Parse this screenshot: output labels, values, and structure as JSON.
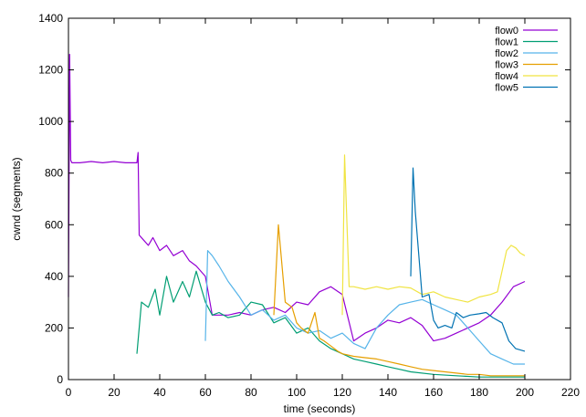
{
  "chart_data": {
    "type": "line",
    "xlabel": "time (seconds)",
    "ylabel": "cwnd (segments)",
    "xlim": [
      0,
      220
    ],
    "ylim": [
      0,
      1400
    ],
    "xticks": [
      0,
      20,
      40,
      60,
      80,
      100,
      120,
      140,
      160,
      180,
      200,
      220
    ],
    "yticks": [
      0,
      200,
      400,
      600,
      800,
      1000,
      1200,
      1400
    ],
    "legend_position": "top-right",
    "grid": false,
    "series": [
      {
        "name": "flow0",
        "color": "#9400d3",
        "x": [
          0,
          0.5,
          1,
          1.5,
          2,
          5,
          10,
          15,
          20,
          25,
          30,
          30.5,
          31,
          33,
          35,
          37,
          40,
          43,
          46,
          50,
          53,
          56,
          60,
          63,
          66,
          70,
          75,
          80,
          85,
          90,
          95,
          100,
          105,
          110,
          115,
          120,
          125,
          130,
          135,
          140,
          145,
          150,
          155,
          160,
          165,
          170,
          175,
          180,
          185,
          190,
          195,
          200
        ],
        "y": [
          320,
          1260,
          850,
          840,
          840,
          840,
          845,
          840,
          845,
          840,
          840,
          880,
          560,
          540,
          520,
          550,
          500,
          520,
          480,
          500,
          460,
          440,
          400,
          250,
          250,
          250,
          260,
          250,
          270,
          280,
          260,
          300,
          290,
          340,
          360,
          330,
          150,
          180,
          200,
          230,
          220,
          240,
          210,
          150,
          160,
          180,
          200,
          220,
          250,
          300,
          360,
          380
        ]
      },
      {
        "name": "flow1",
        "color": "#009e73",
        "x": [
          30,
          32,
          35,
          38,
          40,
          43,
          46,
          50,
          53,
          56,
          60,
          63,
          66,
          70,
          75,
          80,
          85,
          90,
          95,
          100,
          105,
          110,
          115,
          120,
          125,
          130,
          135,
          140,
          145,
          150,
          160,
          170,
          180,
          190,
          200
        ],
        "y": [
          100,
          300,
          280,
          350,
          250,
          400,
          300,
          380,
          320,
          420,
          300,
          250,
          260,
          240,
          250,
          300,
          290,
          220,
          240,
          180,
          200,
          150,
          120,
          100,
          80,
          70,
          60,
          50,
          40,
          30,
          20,
          15,
          10,
          10,
          10
        ]
      },
      {
        "name": "flow2",
        "color": "#56b4e9",
        "x": [
          60,
          61,
          63,
          66,
          70,
          75,
          80,
          85,
          90,
          95,
          100,
          105,
          110,
          115,
          120,
          125,
          130,
          135,
          140,
          145,
          150,
          155,
          160,
          165,
          170,
          175,
          180,
          185,
          190,
          195,
          200
        ],
        "y": [
          150,
          500,
          480,
          440,
          380,
          320,
          250,
          270,
          230,
          250,
          200,
          180,
          190,
          160,
          180,
          140,
          120,
          200,
          250,
          290,
          300,
          310,
          290,
          270,
          250,
          200,
          150,
          100,
          80,
          60,
          60
        ]
      },
      {
        "name": "flow3",
        "color": "#e69f00",
        "x": [
          90,
          92,
          95,
          98,
          100,
          102,
          105,
          108,
          110,
          112,
          115,
          118,
          120,
          125,
          130,
          135,
          140,
          145,
          150,
          155,
          160,
          165,
          170,
          175,
          180,
          185,
          190,
          195,
          200
        ],
        "y": [
          250,
          600,
          300,
          280,
          220,
          200,
          180,
          260,
          160,
          150,
          130,
          110,
          100,
          90,
          85,
          80,
          70,
          60,
          50,
          40,
          35,
          30,
          25,
          20,
          20,
          15,
          15,
          15,
          15
        ]
      },
      {
        "name": "flow4",
        "color": "#f0e442",
        "x": [
          120,
          121,
          123,
          125,
          130,
          135,
          140,
          145,
          150,
          155,
          160,
          165,
          170,
          175,
          180,
          185,
          188,
          190,
          192,
          194,
          196,
          198,
          200
        ],
        "y": [
          250,
          870,
          360,
          360,
          350,
          360,
          350,
          360,
          355,
          330,
          340,
          320,
          310,
          300,
          320,
          330,
          340,
          420,
          500,
          520,
          510,
          490,
          480
        ]
      },
      {
        "name": "flow5",
        "color": "#0072b2",
        "x": [
          150,
          151,
          152,
          155,
          158,
          160,
          162,
          165,
          168,
          170,
          173,
          176,
          180,
          183,
          186,
          190,
          193,
          196,
          200
        ],
        "y": [
          400,
          820,
          650,
          320,
          330,
          230,
          200,
          210,
          200,
          260,
          240,
          250,
          255,
          260,
          240,
          220,
          150,
          120,
          110
        ]
      }
    ]
  }
}
